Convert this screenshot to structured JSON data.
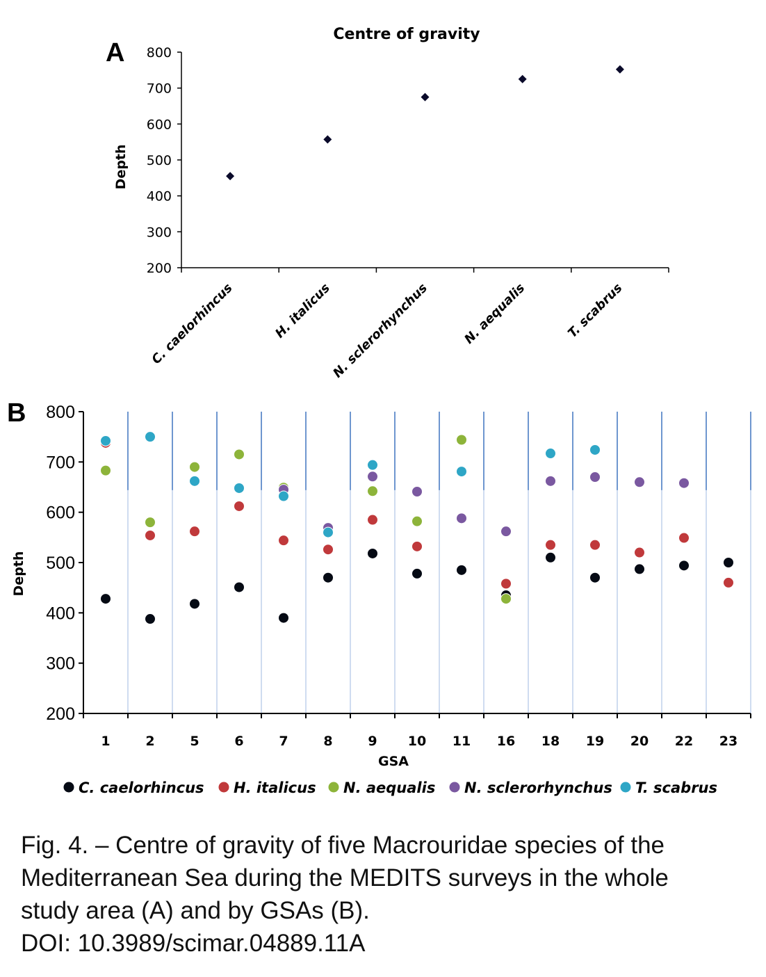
{
  "chart_data": [
    {
      "panel": "A",
      "type": "scatter",
      "title": "Centre of gravity",
      "xlabel": "",
      "ylabel": "Depth",
      "ylim": [
        200,
        800
      ],
      "yticks": [
        200,
        300,
        400,
        500,
        600,
        700,
        800
      ],
      "categories": [
        "C. caelorhincus",
        "H. italicus",
        "N. sclerorhynchus",
        "N. aequalis",
        "T. scabrus"
      ],
      "values": [
        455,
        557,
        675,
        725,
        752
      ],
      "marker": "diamond",
      "color": "#0a0a2a"
    },
    {
      "panel": "B",
      "type": "scatter",
      "title": "",
      "xlabel": "GSA",
      "ylabel": "Depth",
      "ylim": [
        200,
        800
      ],
      "yticks": [
        200,
        300,
        400,
        500,
        600,
        700,
        800
      ],
      "categories": [
        "1",
        "2",
        "5",
        "6",
        "7",
        "8",
        "9",
        "10",
        "11",
        "16",
        "18",
        "19",
        "20",
        "22",
        "23"
      ],
      "legend_position": "bottom",
      "series": [
        {
          "name": "C. caelorhincus",
          "color": "#050a14",
          "values": [
            428,
            388,
            418,
            451,
            390,
            470,
            518,
            478,
            485,
            435,
            510,
            470,
            487,
            494,
            500
          ]
        },
        {
          "name": "H. italicus",
          "color": "#c0393b",
          "values": [
            738,
            554,
            562,
            612,
            544,
            526,
            585,
            532,
            null,
            458,
            535,
            535,
            520,
            549,
            460
          ]
        },
        {
          "name": "N. aequalis",
          "color": "#8db43a",
          "values": [
            683,
            580,
            690,
            715,
            649,
            null,
            642,
            582,
            744,
            428,
            null,
            null,
            null,
            null,
            null
          ]
        },
        {
          "name": "N. sclerorhynchus",
          "color": "#7a58a0",
          "values": [
            null,
            null,
            null,
            null,
            645,
            569,
            671,
            641,
            588,
            562,
            662,
            670,
            660,
            658,
            null
          ]
        },
        {
          "name": "T. scabrus",
          "color": "#2ea6c6",
          "values": [
            742,
            750,
            662,
            648,
            632,
            560,
            694,
            null,
            681,
            null,
            717,
            724,
            null,
            null,
            null
          ]
        }
      ]
    }
  ],
  "caption": {
    "line1": "Fig. 4. – Centre of gravity of five Macrouridae species of the",
    "line2": "Mediterranean Sea during the MEDITS surveys in the whole",
    "line3": "study area (A) and by GSAs (B).",
    "line4": "DOI: 10.3989/scimar.04889.11A"
  }
}
